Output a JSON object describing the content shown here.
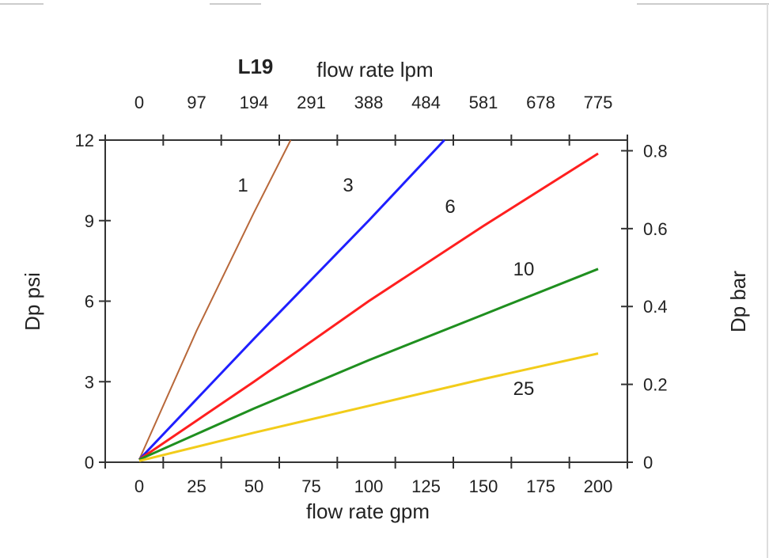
{
  "chart_data": {
    "type": "line",
    "title_bold": "L19",
    "title": "flow rate lpm",
    "xlabel": "flow rate gpm",
    "ylabel": "Dp psi",
    "ylabel_right": "Dp bar",
    "x_ticks": [
      0,
      25,
      50,
      75,
      100,
      125,
      150,
      175,
      200
    ],
    "x_top_ticks": [
      "0",
      "97",
      "194",
      "291",
      "388",
      "484",
      "581",
      "678",
      "775"
    ],
    "y_ticks": [
      0,
      3,
      6,
      9,
      12
    ],
    "y_right_ticks": [
      "0",
      "0.2",
      "0.4",
      "0.6",
      "0.8"
    ],
    "xlim": [
      -15,
      213
    ],
    "ylim": [
      0,
      12
    ],
    "grid": false,
    "series": [
      {
        "label": "1",
        "color": "#b8683a",
        "x": [
          0,
          25,
          50,
          66
        ],
        "y": [
          0.1,
          4.9,
          9.3,
          12
        ]
      },
      {
        "label": "3",
        "color": "#1f1fff",
        "x": [
          0,
          50,
          100,
          133
        ],
        "y": [
          0.1,
          4.6,
          9.0,
          12
        ]
      },
      {
        "label": "6",
        "color": "#ff1f1f",
        "x": [
          0,
          50,
          100,
          150,
          200
        ],
        "y": [
          0.1,
          3.0,
          6.0,
          8.8,
          11.5
        ]
      },
      {
        "label": "10",
        "color": "#1f8f1f",
        "x": [
          0,
          50,
          100,
          150,
          200
        ],
        "y": [
          0.1,
          2.0,
          3.8,
          5.5,
          7.2
        ]
      },
      {
        "label": "25",
        "color": "#f2cc1a",
        "x": [
          0,
          50,
          100,
          150,
          200
        ],
        "y": [
          0.05,
          1.1,
          2.1,
          3.1,
          4.05
        ]
      }
    ]
  }
}
